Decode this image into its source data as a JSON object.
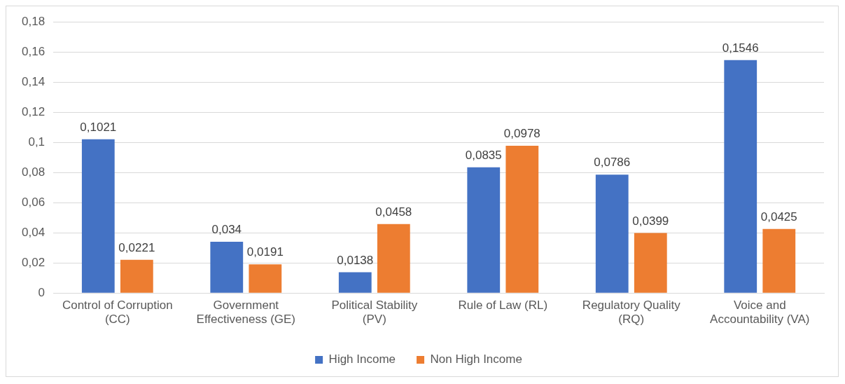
{
  "chart_data": {
    "type": "bar",
    "categories": [
      "Control of Corruption (CC)",
      "Government Effectiveness (GE)",
      "Political Stability (PV)",
      "Rule of Law (RL)",
      "Regulatory Quality (RQ)",
      "Voice and Accountability (VA)"
    ],
    "series": [
      {
        "name": "High Income",
        "color": "#4472c4",
        "values": [
          0.1021,
          0.034,
          0.0138,
          0.0835,
          0.0786,
          0.1546
        ],
        "value_labels": [
          "0,1021",
          "0,034",
          "0,0138",
          "0,0835",
          "0,0786",
          "0,1546"
        ]
      },
      {
        "name": "Non High Income",
        "color": "#ed7d31",
        "values": [
          0.0221,
          0.0191,
          0.0458,
          0.0978,
          0.0399,
          0.0425
        ],
        "value_labels": [
          "0,0221",
          "0,0191",
          "0,0458",
          "0,0978",
          "0,0399",
          "0,0425"
        ]
      }
    ],
    "ylim": [
      0,
      0.18
    ],
    "yticks": [
      {
        "value": 0,
        "label": "0"
      },
      {
        "value": 0.02,
        "label": "0,02"
      },
      {
        "value": 0.04,
        "label": "0,04"
      },
      {
        "value": 0.06,
        "label": "0,06"
      },
      {
        "value": 0.08,
        "label": "0,08"
      },
      {
        "value": 0.1,
        "label": "0,1"
      },
      {
        "value": 0.12,
        "label": "0,12"
      },
      {
        "value": 0.14,
        "label": "0,14"
      },
      {
        "value": 0.16,
        "label": "0,16"
      },
      {
        "value": 0.18,
        "label": "0,18"
      }
    ],
    "grid": "y",
    "legend": "bottom"
  }
}
